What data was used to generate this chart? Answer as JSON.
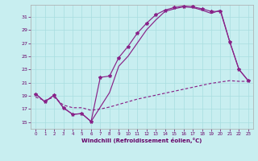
{
  "background_color": "#c8eef0",
  "grid_color": "#a8dde0",
  "line_color": "#882288",
  "xlabel": "Windchill (Refroidissement éolien,°C)",
  "x_ticks": [
    0,
    1,
    2,
    3,
    4,
    5,
    6,
    7,
    8,
    9,
    10,
    11,
    12,
    13,
    14,
    15,
    16,
    17,
    18,
    19,
    20,
    21,
    22,
    23
  ],
  "y_ticks": [
    15,
    17,
    19,
    21,
    23,
    25,
    27,
    29,
    31
  ],
  "xlim": [
    -0.5,
    23.5
  ],
  "ylim": [
    14.0,
    32.8
  ],
  "curve1_x": [
    0,
    1,
    2,
    3,
    4,
    5,
    6,
    7,
    8,
    9,
    10,
    11,
    12,
    13,
    14,
    15,
    16,
    17,
    18,
    19,
    20,
    21,
    22,
    23
  ],
  "curve1_y": [
    19.3,
    18.1,
    19.1,
    17.2,
    16.2,
    16.3,
    15.1,
    21.8,
    22.0,
    24.8,
    26.5,
    28.5,
    30.0,
    31.3,
    32.0,
    32.4,
    32.6,
    32.5,
    32.2,
    31.8,
    31.8,
    27.2,
    23.0,
    21.3
  ],
  "curve2_x": [
    0,
    1,
    2,
    3,
    4,
    5,
    6,
    7,
    8,
    9,
    10,
    11,
    12,
    13,
    14,
    15,
    16,
    17,
    18,
    19,
    20,
    21,
    22,
    23
  ],
  "curve2_y": [
    19.3,
    18.1,
    19.1,
    17.2,
    16.2,
    16.3,
    15.1,
    17.3,
    19.5,
    23.5,
    25.0,
    27.0,
    29.0,
    30.5,
    31.8,
    32.2,
    32.5,
    32.4,
    32.0,
    31.5,
    32.0,
    27.2,
    23.0,
    21.3
  ],
  "curve3_x": [
    0,
    1,
    2,
    3,
    4,
    5,
    6,
    7,
    8,
    9,
    10,
    11,
    12,
    13,
    14,
    15,
    16,
    17,
    18,
    19,
    20,
    21,
    22,
    23
  ],
  "curve3_y": [
    18.8,
    18.3,
    18.8,
    17.6,
    17.2,
    17.2,
    16.8,
    17.0,
    17.3,
    17.7,
    18.1,
    18.5,
    18.8,
    19.1,
    19.4,
    19.7,
    20.0,
    20.3,
    20.6,
    20.9,
    21.1,
    21.3,
    21.2,
    21.2
  ]
}
